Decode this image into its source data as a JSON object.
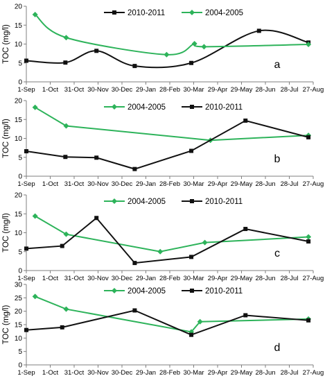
{
  "x_ticks": [
    "1-Sep",
    "1-Oct",
    "31-Oct",
    "30-Nov",
    "30-Dec",
    "29-Jan",
    "28-Feb",
    "30-Mar",
    "29-Apr",
    "29-May",
    "28-Jun",
    "28-Jul",
    "27-Aug"
  ],
  "colors": {
    "series_2004_2005": "#2db35a",
    "series_2010_2011": "#111111",
    "axis": "#7f7f7f"
  },
  "chart_data": [
    {
      "type": "line",
      "panel_label": "a",
      "ylabel": "TOC (mg/l)",
      "ylim": [
        0,
        20
      ],
      "yticks": [
        0,
        5,
        10,
        15,
        20
      ],
      "xlim_days": [
        0,
        360
      ],
      "smooth": true,
      "legend_order": [
        "2010-2011",
        "2004-2005"
      ],
      "series": [
        {
          "name": "2010-2011",
          "marker": "square",
          "color": "#111111",
          "points": [
            {
              "x": "1-Sep",
              "y": 5.6
            },
            {
              "x": "20-Oct",
              "y": 5.1
            },
            {
              "x": "28-Nov",
              "y": 8.2
            },
            {
              "x": "15-Jan",
              "y": 4.2
            },
            {
              "x": "27-Mar",
              "y": 5.0
            },
            {
              "x": "20-Jun",
              "y": 13.5
            },
            {
              "x": "21-Aug",
              "y": 10.4
            }
          ]
        },
        {
          "name": "2004-2005",
          "marker": "diamond",
          "color": "#2db35a",
          "points": [
            {
              "x": "12-Sep",
              "y": 17.8
            },
            {
              "x": "21-Oct",
              "y": 11.7
            },
            {
              "x": "24-Feb",
              "y": 7.2
            },
            {
              "x": "31-Mar",
              "y": 10.1
            },
            {
              "x": "12-Apr",
              "y": 9.3
            },
            {
              "x": "21-Aug",
              "y": 9.9
            }
          ]
        }
      ]
    },
    {
      "type": "line",
      "panel_label": "b",
      "ylabel": "TOC (mg/l)",
      "ylim": [
        0,
        20
      ],
      "yticks": [
        0,
        5,
        10,
        15,
        20
      ],
      "xlim_days": [
        0,
        360
      ],
      "smooth": false,
      "legend_order": [
        "2004-2005",
        "2010-2011"
      ],
      "series": [
        {
          "name": "2004-2005",
          "marker": "diamond",
          "color": "#2db35a",
          "points": [
            {
              "x": "12-Sep",
              "y": 18.2
            },
            {
              "x": "21-Oct",
              "y": 13.3
            },
            {
              "x": "20-Apr",
              "y": 9.5
            },
            {
              "x": "21-Aug",
              "y": 10.8
            }
          ]
        },
        {
          "name": "2010-2011",
          "marker": "square",
          "color": "#111111",
          "points": [
            {
              "x": "1-Sep",
              "y": 6.6
            },
            {
              "x": "20-Oct",
              "y": 5.1
            },
            {
              "x": "28-Nov",
              "y": 4.9
            },
            {
              "x": "15-Jan",
              "y": 1.9
            },
            {
              "x": "27-Mar",
              "y": 6.7
            },
            {
              "x": "3-Jun",
              "y": 14.7
            },
            {
              "x": "21-Aug",
              "y": 10.3
            }
          ]
        }
      ]
    },
    {
      "type": "line",
      "panel_label": "c",
      "ylabel": "TOC (mg/l)",
      "ylim": [
        0,
        20
      ],
      "yticks": [
        0,
        5,
        10,
        15,
        20
      ],
      "xlim_days": [
        0,
        360
      ],
      "smooth": false,
      "legend_order": [
        "2004-2005",
        "2010-2011"
      ],
      "series": [
        {
          "name": "2004-2005",
          "marker": "diamond",
          "color": "#2db35a",
          "points": [
            {
              "x": "12-Sep",
              "y": 14.4
            },
            {
              "x": "21-Oct",
              "y": 9.6
            },
            {
              "x": "16-Feb",
              "y": 5.0
            },
            {
              "x": "13-Apr",
              "y": 7.4
            },
            {
              "x": "21-Aug",
              "y": 8.9
            }
          ]
        },
        {
          "name": "2010-2011",
          "marker": "square",
          "color": "#111111",
          "points": [
            {
              "x": "1-Sep",
              "y": 5.8
            },
            {
              "x": "16-Oct",
              "y": 6.5
            },
            {
              "x": "28-Nov",
              "y": 13.9
            },
            {
              "x": "15-Jan",
              "y": 2.0
            },
            {
              "x": "27-Mar",
              "y": 3.6
            },
            {
              "x": "3-Jun",
              "y": 11.0
            },
            {
              "x": "21-Aug",
              "y": 7.7
            }
          ]
        }
      ]
    },
    {
      "type": "line",
      "panel_label": "d",
      "ylabel": "TOC (mg/l)",
      "ylim": [
        0,
        30
      ],
      "yticks": [
        0,
        5,
        10,
        15,
        20,
        25,
        30
      ],
      "xlim_days": [
        0,
        360
      ],
      "smooth": false,
      "legend_order": [
        "2004-2005",
        "2010-2011"
      ],
      "series": [
        {
          "name": "2004-2005",
          "marker": "diamond",
          "color": "#2db35a",
          "points": [
            {
              "x": "12-Sep",
              "y": 25.5
            },
            {
              "x": "21-Oct",
              "y": 20.8
            },
            {
              "x": "27-Mar",
              "y": 12.3
            },
            {
              "x": "7-Apr",
              "y": 16.1
            },
            {
              "x": "21-Aug",
              "y": 17.1
            }
          ]
        },
        {
          "name": "2010-2011",
          "marker": "square",
          "color": "#111111",
          "points": [
            {
              "x": "1-Sep",
              "y": 13.0
            },
            {
              "x": "16-Oct",
              "y": 14.0
            },
            {
              "x": "15-Jan",
              "y": 20.3
            },
            {
              "x": "27-Mar",
              "y": 11.2
            },
            {
              "x": "3-Jun",
              "y": 18.5
            },
            {
              "x": "21-Aug",
              "y": 16.6
            }
          ]
        }
      ]
    }
  ]
}
